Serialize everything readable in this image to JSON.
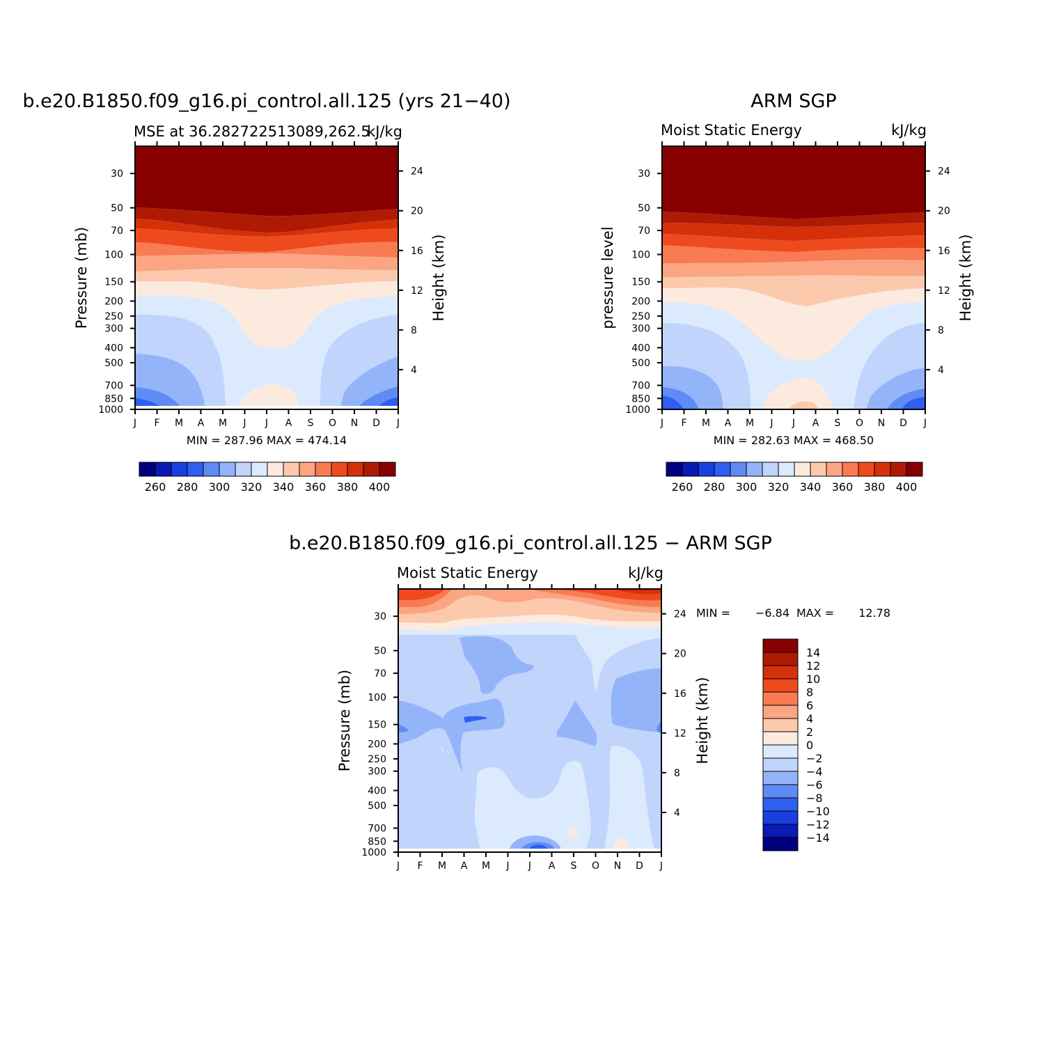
{
  "chart_data": [
    {
      "type": "heatmap",
      "title": "b.e20.B1850.f09_g16.pi_control.all.125 (yrs 21−40)",
      "subtitle_left": "MSE at 36.282722513089,262.5",
      "subtitle_right": "kJ/kg",
      "ylabel": "Pressure (mb)",
      "ylabel_right": "Height (km)",
      "months": [
        "J",
        "F",
        "M",
        "A",
        "M",
        "J",
        "J",
        "A",
        "S",
        "O",
        "N",
        "D",
        "J"
      ],
      "pressure_ticks": [
        "30",
        "50",
        "70",
        "100",
        "150",
        "200",
        "250",
        "300",
        "400",
        "500",
        "700",
        "850",
        "1000"
      ],
      "height_ticks": [
        "24",
        "20",
        "16",
        "12",
        "8",
        "4"
      ],
      "stats": "MIN = 287.96 MAX = 474.14",
      "colorbar_labels": [
        "260",
        "280",
        "300",
        "320",
        "340",
        "360",
        "380",
        "400"
      ],
      "contour_interval": 10,
      "colors": [
        "#00007F",
        "#0A1AB4",
        "#1A3EE0",
        "#2E5FF0",
        "#5F8BF5",
        "#94B4FA",
        "#C0D4FC",
        "#DCEAFD",
        "#FDEADF",
        "#FCC9AD",
        "#FBA582",
        "#F97B53",
        "#EF4A1D",
        "#D4300A",
        "#AF1A05",
        "#870000"
      ],
      "levels_top_to_bottom": [
        {
          "p": "30-60",
          "value": ">400"
        },
        {
          "p": "60-70",
          "value": "390-400"
        },
        {
          "p": "70-100",
          "value": "370-390"
        },
        {
          "p": "100-200",
          "value": "340-370"
        },
        {
          "p": "200-1000",
          "value": "280-340"
        }
      ]
    },
    {
      "type": "heatmap",
      "title": "ARM SGP",
      "subtitle_left": "Moist Static Energy",
      "subtitle_right": "kJ/kg",
      "ylabel": "pressure level",
      "ylabel_right": "Height (km)",
      "months": [
        "J",
        "F",
        "M",
        "A",
        "M",
        "J",
        "J",
        "A",
        "S",
        "O",
        "N",
        "D",
        "J"
      ],
      "pressure_ticks": [
        "30",
        "50",
        "70",
        "100",
        "150",
        "200",
        "250",
        "300",
        "400",
        "500",
        "700",
        "850",
        "1000"
      ],
      "height_ticks": [
        "24",
        "20",
        "16",
        "12",
        "8",
        "4"
      ],
      "stats": "MIN = 282.63 MAX = 468.50",
      "colorbar_labels": [
        "260",
        "280",
        "300",
        "320",
        "340",
        "360",
        "380",
        "400"
      ],
      "contour_interval": 10
    },
    {
      "type": "heatmap",
      "title": "b.e20.B1850.f09_g16.pi_control.all.125 − ARM SGP",
      "subtitle_left": "Moist Static Energy",
      "subtitle_right": "kJ/kg",
      "ylabel": "Pressure (mb)",
      "ylabel_right": "Height (km)",
      "months": [
        "J",
        "F",
        "M",
        "A",
        "M",
        "J",
        "J",
        "A",
        "S",
        "O",
        "N",
        "D",
        "J"
      ],
      "pressure_ticks": [
        "30",
        "50",
        "70",
        "100",
        "150",
        "200",
        "250",
        "300",
        "400",
        "500",
        "700",
        "850",
        "1000"
      ],
      "height_ticks": [
        "24",
        "20",
        "16",
        "12",
        "8",
        "4"
      ],
      "stats_label_min": "MIN =",
      "stats_min": "−6.84",
      "stats_label_max": "MAX =",
      "stats_max": "12.78",
      "colorbar_labels": [
        "14",
        "12",
        "10",
        "8",
        "6",
        "4",
        "2",
        "0",
        "−2",
        "−4",
        "−6",
        "−8",
        "−10",
        "−12",
        "−14"
      ],
      "contour_interval": 2,
      "colors": [
        "#870000",
        "#AF1A05",
        "#D4300A",
        "#EF4A1D",
        "#F97B53",
        "#FBA582",
        "#FCC9AD",
        "#FDEADF",
        "#DCEAFD",
        "#C0D4FC",
        "#94B4FA",
        "#5F8BF5",
        "#2E5FF0",
        "#1A3EE0",
        "#0A1AB4",
        "#00007F"
      ]
    }
  ]
}
